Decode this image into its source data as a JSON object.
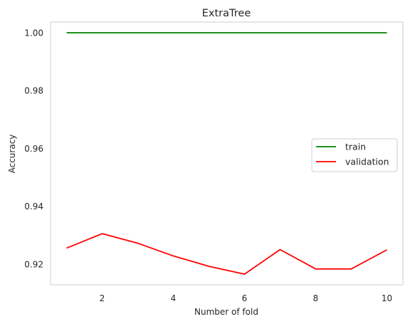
{
  "chart_data": {
    "type": "line",
    "title": "ExtraTree",
    "xlabel": "Number of fold",
    "ylabel": "Accuracy",
    "x": [
      1,
      2,
      3,
      4,
      5,
      6,
      7,
      8,
      9,
      10
    ],
    "xlim": [
      0.55,
      10.45
    ],
    "ylim": [
      0.9128,
      1.0037
    ],
    "xticks": [
      2,
      4,
      6,
      8,
      10
    ],
    "yticks": [
      0.92,
      0.94,
      0.96,
      0.98,
      1.0
    ],
    "xtick_labels": [
      "2",
      "4",
      "6",
      "8",
      "10"
    ],
    "ytick_labels": [
      "0.92",
      "0.94",
      "0.96",
      "0.98",
      "1.00"
    ],
    "grid": false,
    "legend_position": "center-right",
    "series": [
      {
        "name": "train",
        "color": "#008000",
        "values": [
          1.0,
          1.0,
          1.0,
          1.0,
          1.0,
          1.0,
          1.0,
          1.0,
          1.0,
          1.0
        ]
      },
      {
        "name": "validation",
        "color": "#ff0000",
        "values": [
          0.9255,
          0.9305,
          0.9272,
          0.9228,
          0.9192,
          0.9165,
          0.925,
          0.9183,
          0.9183,
          0.9249
        ]
      }
    ]
  }
}
